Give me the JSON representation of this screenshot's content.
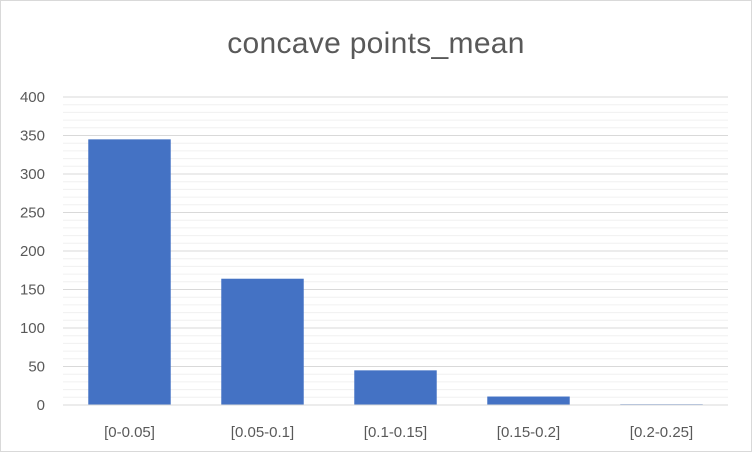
{
  "chart_data": {
    "type": "bar",
    "title": "concave points_mean",
    "xlabel": "",
    "ylabel": "",
    "categories": [
      "[0-0.05]",
      "[0.05-0.1]",
      "[0.1-0.15]",
      "[0.15-0.2]",
      "[0.2-0.25]"
    ],
    "values": [
      345,
      164,
      45,
      11,
      1
    ],
    "ylim": [
      0,
      400
    ],
    "y_ticks": [
      "0",
      "50",
      "100",
      "150",
      "200",
      "250",
      "300",
      "350",
      "400"
    ],
    "grid": true,
    "minor_grid": true,
    "legend": "none",
    "bar_color": "#4472c4",
    "gridline_color": "#d9d9d9",
    "text_color": "#595959"
  }
}
